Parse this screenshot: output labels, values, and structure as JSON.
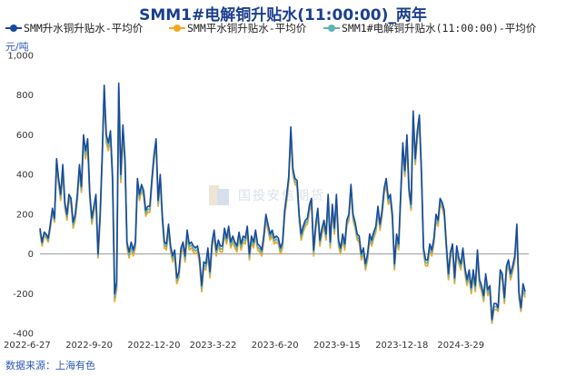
{
  "title": "SMM1#电解铜升贴水(11:00:00)_两年",
  "unit_label": "元/吨",
  "source_label": "数据来源：上海有色",
  "watermark_text": "国投安信期货",
  "colors": {
    "title": "#1b3f8f",
    "series_main": "#1a4a9c",
    "series_orange": "#f5a623",
    "series_teal": "#5fb3b3",
    "zero_line": "#9a9a9a"
  },
  "chart_data": {
    "type": "line",
    "title": "SMM1#电解铜升贴水(11:00:00)_两年",
    "ylabel": "元/吨",
    "xlabel": "",
    "ylim": [
      -400,
      1000
    ],
    "y_ticks": [
      -400,
      -200,
      0,
      200,
      400,
      600,
      800,
      1000
    ],
    "y_tick_labels": [
      "-400",
      "-200",
      "0",
      "200",
      "400",
      "600",
      "800",
      "1,000"
    ],
    "x_tick_labels": [
      "2022-6-27",
      "2022-9-20",
      "2022-12-20",
      "2023-3-22",
      "2023-6-20",
      "2023-9-15",
      "2023-12-18",
      "2024-3-29"
    ],
    "legend": [
      {
        "name": "SMM升水铜升贴水-平均价",
        "color": "#1a4a9c"
      },
      {
        "name": "SMM平水铜升贴水-平均价",
        "color": "#f5a623"
      },
      {
        "name": "SMM1#电解铜升贴水(11:00:00)-平均价",
        "color": "#5fb3b3"
      }
    ],
    "series": [
      {
        "name": "SMM升水铜升贴水-平均价",
        "values": [
          130,
          60,
          110,
          100,
          80,
          150,
          230,
          180,
          480,
          380,
          300,
          450,
          260,
          200,
          300,
          280,
          160,
          200,
          300,
          450,
          340,
          600,
          520,
          580,
          310,
          180,
          240,
          300,
          0,
          200,
          500,
          850,
          600,
          560,
          620,
          390,
          -200,
          -140,
          860,
          400,
          650,
          480,
          60,
          10,
          60,
          20,
          60,
          380,
          300,
          350,
          320,
          220,
          240,
          240,
          380,
          500,
          580,
          270,
          400,
          200,
          60,
          50,
          150,
          40,
          -10,
          20,
          -120,
          -90,
          30,
          60,
          -10,
          120,
          50,
          60,
          40,
          30,
          40,
          -20,
          -160,
          -40,
          -50,
          30,
          -90,
          60,
          120,
          20,
          70,
          40,
          40,
          130,
          80,
          140,
          60,
          90,
          60,
          40,
          110,
          50,
          90,
          80,
          140,
          0,
          90,
          60,
          120,
          50,
          40,
          20,
          100,
          200,
          150,
          100,
          120,
          80,
          90,
          80,
          30,
          60,
          220,
          300,
          390,
          640,
          430,
          380,
          370,
          200,
          100,
          140,
          170,
          180,
          250,
          280,
          20,
          150,
          230,
          70,
          130,
          170,
          100,
          300,
          60,
          250,
          130,
          300,
          70,
          30,
          100,
          50,
          170,
          200,
          350,
          200,
          160,
          100,
          90,
          0,
          30,
          -50,
          0,
          100,
          70,
          110,
          140,
          240,
          150,
          220,
          330,
          380,
          280,
          300,
          200,
          -50,
          100,
          50,
          310,
          560,
          420,
          600,
          330,
          250,
          720,
          480,
          620,
          700,
          420,
          30,
          -30,
          -30,
          50,
          20,
          80,
          200,
          170,
          280,
          260,
          220,
          50,
          -100,
          10,
          50,
          -120,
          40,
          -20,
          -50,
          30,
          -70,
          -130,
          -80,
          -170,
          -80,
          -160,
          20,
          -130,
          -160,
          -210,
          -100,
          -180,
          -160,
          -330,
          -250,
          -250,
          -270,
          -80,
          -100,
          -220,
          -60,
          -30,
          -100,
          -60,
          -10,
          150,
          -190,
          -270,
          -150,
          -190
        ]
      },
      {
        "name": "SMM平水铜升贴水-平均价",
        "values": [
          110,
          40,
          90,
          80,
          60,
          130,
          210,
          160,
          450,
          350,
          270,
          420,
          230,
          170,
          270,
          250,
          130,
          170,
          270,
          420,
          310,
          560,
          480,
          540,
          280,
          150,
          210,
          270,
          -20,
          170,
          470,
          810,
          560,
          520,
          590,
          360,
          -240,
          -180,
          820,
          360,
          610,
          440,
          30,
          -20,
          30,
          -10,
          30,
          350,
          270,
          320,
          290,
          190,
          210,
          210,
          350,
          470,
          550,
          240,
          370,
          170,
          30,
          20,
          120,
          10,
          -40,
          -10,
          -150,
          -120,
          0,
          30,
          -40,
          90,
          20,
          30,
          10,
          0,
          10,
          -50,
          -190,
          -70,
          -80,
          0,
          -120,
          30,
          90,
          -10,
          40,
          10,
          10,
          100,
          50,
          110,
          30,
          60,
          30,
          10,
          80,
          20,
          60,
          50,
          110,
          -30,
          60,
          30,
          90,
          20,
          10,
          -10,
          70,
          170,
          120,
          70,
          90,
          50,
          60,
          50,
          0,
          30,
          190,
          270,
          360,
          590,
          400,
          350,
          340,
          170,
          70,
          110,
          140,
          150,
          220,
          250,
          -10,
          120,
          200,
          40,
          100,
          140,
          70,
          270,
          30,
          220,
          100,
          270,
          40,
          0,
          70,
          20,
          140,
          170,
          320,
          170,
          130,
          70,
          60,
          -30,
          0,
          -80,
          -30,
          70,
          40,
          80,
          110,
          210,
          120,
          190,
          300,
          350,
          250,
          270,
          170,
          -80,
          70,
          20,
          280,
          520,
          390,
          560,
          300,
          220,
          680,
          450,
          580,
          660,
          390,
          0,
          -60,
          -60,
          20,
          -10,
          50,
          170,
          140,
          250,
          230,
          190,
          20,
          -130,
          -20,
          20,
          -150,
          10,
          -50,
          -80,
          0,
          -100,
          -160,
          -110,
          -200,
          -110,
          -190,
          -10,
          -160,
          -190,
          -240,
          -130,
          -210,
          -190,
          -350,
          -280,
          -280,
          -290,
          -110,
          -130,
          -250,
          -90,
          -60,
          -130,
          -90,
          -40,
          120,
          -220,
          -290,
          -180,
          -220
        ]
      },
      {
        "name": "SMM1#电解铜升贴水(11:00:00)-平均价",
        "values": [
          120,
          50,
          100,
          90,
          70,
          140,
          220,
          170,
          465,
          365,
          285,
          435,
          245,
          185,
          285,
          265,
          145,
          185,
          285,
          435,
          325,
          580,
          500,
          560,
          295,
          165,
          225,
          285,
          -10,
          185,
          485,
          830,
          580,
          540,
          605,
          375,
          -220,
          -160,
          840,
          380,
          630,
          460,
          45,
          -5,
          45,
          5,
          45,
          365,
          285,
          335,
          305,
          205,
          225,
          225,
          365,
          485,
          565,
          255,
          385,
          185,
          45,
          35,
          135,
          25,
          -25,
          5,
          -135,
          -105,
          15,
          45,
          -25,
          105,
          35,
          45,
          25,
          15,
          25,
          -35,
          -175,
          -55,
          -65,
          15,
          -105,
          45,
          105,
          5,
          55,
          25,
          25,
          115,
          65,
          125,
          45,
          75,
          45,
          25,
          95,
          35,
          75,
          65,
          125,
          -15,
          75,
          45,
          105,
          35,
          25,
          5,
          85,
          185,
          135,
          85,
          105,
          65,
          75,
          65,
          15,
          45,
          205,
          285,
          375,
          615,
          415,
          365,
          355,
          185,
          85,
          125,
          155,
          165,
          235,
          265,
          5,
          135,
          215,
          55,
          115,
          155,
          85,
          285,
          45,
          235,
          115,
          285,
          55,
          15,
          85,
          35,
          155,
          185,
          335,
          185,
          145,
          85,
          75,
          -15,
          15,
          -65,
          -15,
          85,
          55,
          95,
          125,
          225,
          135,
          205,
          315,
          365,
          265,
          285,
          185,
          -65,
          85,
          35,
          295,
          540,
          405,
          580,
          315,
          235,
          700,
          465,
          600,
          680,
          405,
          15,
          -45,
          -45,
          35,
          5,
          65,
          185,
          155,
          265,
          245,
          205,
          35,
          -115,
          -5,
          35,
          -135,
          25,
          -35,
          -65,
          15,
          -85,
          -145,
          -95,
          -185,
          -95,
          -175,
          5,
          -145,
          -175,
          -225,
          -115,
          -195,
          -175,
          -340,
          -265,
          -265,
          -280,
          -95,
          -115,
          -235,
          -75,
          -45,
          -115,
          -75,
          -25,
          135,
          -205,
          -280,
          -165,
          -205
        ]
      }
    ]
  }
}
